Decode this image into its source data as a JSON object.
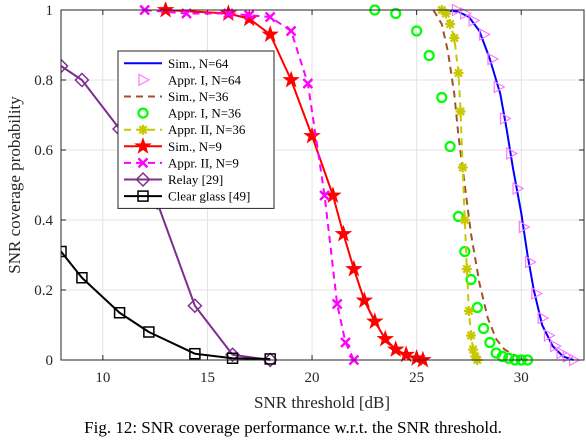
{
  "caption": "Fig. 12: SNR coverage performance w.r.t. the SNR threshold.",
  "chart_data": {
    "type": "line",
    "xlabel": "SNR threshold [dB]",
    "ylabel": "SNR coverage probability",
    "xlim": [
      8,
      33
    ],
    "ylim": [
      0,
      1
    ],
    "xticks": [
      10,
      15,
      20,
      25,
      30
    ],
    "yticks": [
      0,
      0.2,
      0.4,
      0.6,
      0.8,
      1
    ],
    "grid": true,
    "legend_position": "top-left",
    "series": [
      {
        "name": "Sim., N=64",
        "color": "#0000ff",
        "dash": "solid",
        "marker": "none",
        "x": [
          26.3,
          27.0,
          27.5,
          28.0,
          28.5,
          29.0,
          29.3,
          29.6,
          30.0,
          30.3,
          30.6,
          31.0,
          31.5,
          32.0,
          32.5
        ],
        "y": [
          1.0,
          0.995,
          0.98,
          0.94,
          0.86,
          0.76,
          0.66,
          0.55,
          0.42,
          0.3,
          0.2,
          0.1,
          0.04,
          0.01,
          0.0
        ]
      },
      {
        "name": "Appr. I, N=64",
        "color": "#ff77ff",
        "dash": "solid",
        "marker": "triangle",
        "line": false,
        "x": [
          26.9,
          27.3,
          27.7,
          28.2,
          28.6,
          28.9,
          29.2,
          29.5,
          29.8,
          30.1,
          30.4,
          30.7,
          31.0,
          31.3,
          31.6,
          31.9,
          32.2,
          32.5
        ],
        "y": [
          1.0,
          0.99,
          0.97,
          0.93,
          0.86,
          0.78,
          0.69,
          0.59,
          0.49,
          0.38,
          0.28,
          0.19,
          0.12,
          0.07,
          0.04,
          0.02,
          0.01,
          0.0
        ]
      },
      {
        "name": "Sim., N=36",
        "color": "#a0522d",
        "dash": "dashed",
        "marker": "none",
        "x": [
          25.8,
          26.2,
          26.5,
          26.8,
          27.0,
          27.3,
          27.6,
          28.0,
          28.4,
          28.8,
          29.2,
          29.8,
          30.3
        ],
        "y": [
          1.0,
          0.96,
          0.88,
          0.76,
          0.64,
          0.5,
          0.36,
          0.22,
          0.12,
          0.06,
          0.03,
          0.01,
          0.0
        ]
      },
      {
        "name": "Appr. I, N=36",
        "color": "#00ff00",
        "dash": "solid",
        "marker": "circle",
        "line": false,
        "x": [
          23.0,
          24.0,
          25.0,
          25.6,
          26.2,
          26.6,
          27.0,
          27.3,
          27.6,
          27.9,
          28.2,
          28.5,
          28.8,
          29.1,
          29.4,
          29.7,
          30.0,
          30.3
        ],
        "y": [
          1.0,
          0.99,
          0.94,
          0.87,
          0.75,
          0.61,
          0.41,
          0.31,
          0.23,
          0.15,
          0.09,
          0.05,
          0.02,
          0.01,
          0.005,
          0.0,
          0.0,
          0.0
        ]
      },
      {
        "name": "Appr. II, N=36",
        "color": "#c8c800",
        "dash": "dashed",
        "marker": "asterisk",
        "x": [
          26.2,
          26.4,
          26.6,
          26.8,
          27.0,
          27.1,
          27.2,
          27.3,
          27.4,
          27.5,
          27.6,
          27.7,
          27.8,
          27.9
        ],
        "y": [
          1.0,
          0.99,
          0.96,
          0.92,
          0.82,
          0.71,
          0.55,
          0.4,
          0.26,
          0.14,
          0.07,
          0.03,
          0.01,
          0.0
        ]
      },
      {
        "name": "Sim., N=9",
        "color": "#ff0000",
        "dash": "solid",
        "marker": "star",
        "x": [
          13.0,
          16.0,
          17.0,
          18.0,
          19.0,
          20.0,
          21.0,
          21.5,
          22.0,
          22.5,
          23.0,
          23.5,
          24.0,
          24.5,
          25.0,
          25.3
        ],
        "y": [
          1.0,
          0.99,
          0.975,
          0.93,
          0.8,
          0.64,
          0.47,
          0.36,
          0.26,
          0.17,
          0.11,
          0.06,
          0.03,
          0.015,
          0.005,
          0.0
        ]
      },
      {
        "name": "Appr. II, N=9",
        "color": "#ff00ff",
        "dash": "dashed",
        "marker": "x",
        "x": [
          12.0,
          14.0,
          16.0,
          17.0,
          18.0,
          19.0,
          19.8,
          20.6,
          21.2,
          21.6,
          22.0
        ],
        "y": [
          1.0,
          0.99,
          0.99,
          0.985,
          0.98,
          0.94,
          0.79,
          0.47,
          0.16,
          0.05,
          0.0
        ]
      },
      {
        "name": "Relay [29]",
        "color": "#7e2f8e",
        "dash": "solid",
        "marker": "diamond",
        "x": [
          8.0,
          9.0,
          10.8,
          12.6,
          14.4,
          16.2,
          18.0
        ],
        "y": [
          0.84,
          0.8,
          0.66,
          0.45,
          0.155,
          0.015,
          0.0
        ]
      },
      {
        "name": "Clear glass [49]",
        "color": "#000000",
        "dash": "solid",
        "marker": "square",
        "x": [
          8.0,
          9.0,
          10.8,
          12.2,
          14.4,
          16.2,
          18.0
        ],
        "y": [
          0.31,
          0.235,
          0.135,
          0.08,
          0.018,
          0.005,
          0.003
        ]
      }
    ]
  }
}
